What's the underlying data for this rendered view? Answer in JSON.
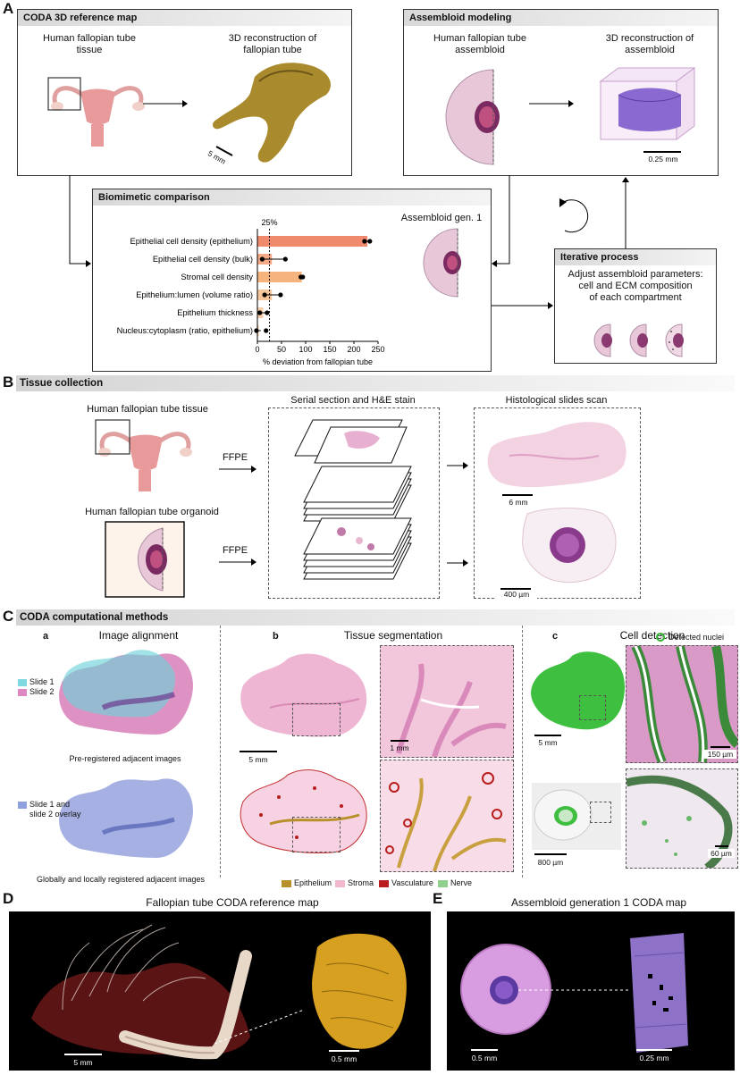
{
  "panelA": {
    "label": "A",
    "coda_box": {
      "title": "CODA 3D reference map",
      "tissue_label": "Human fallopian tube\ntissue",
      "recon_label": "3D reconstruction of\nfallopian tube",
      "scalebar": "5 mm"
    },
    "assembloid_box": {
      "title": "Assembloid modeling",
      "assembloid_label": "Human fallopian tube\nassembloid",
      "recon_label": "3D reconstruction of\nassembloid",
      "scalebar": "0.25 mm"
    },
    "biomimetic": {
      "title": "Biomimetic comparison",
      "gen_label": "Assembloid gen. 1",
      "ref_line_label": "25%"
    },
    "iterative": {
      "title": "Iterative process",
      "text": "Adjust assembloid parameters:\ncell and ECM composition\nof each compartment"
    }
  },
  "chart_data": {
    "type": "bar",
    "orientation": "horizontal",
    "categories": [
      "Epithelial cell density (epithelium)",
      "Epithelial cell density (bulk)",
      "Stromal cell density",
      "Epithelium:lumen (volume ratio)",
      "Epithelium thickness",
      "Nucleus:cytoplasm (ratio, epithelium)"
    ],
    "values": [
      228,
      30,
      92,
      30,
      12,
      3
    ],
    "errors": [
      6,
      25,
      3,
      16,
      8,
      4
    ],
    "points": [
      [
        222,
        233
      ],
      [
        10,
        58
      ],
      [
        90,
        94
      ],
      [
        15,
        48
      ],
      [
        5,
        20
      ],
      [
        -2,
        18
      ]
    ],
    "colors": [
      "#f08a6c",
      "#f5a987",
      "#f5b37d",
      "#f7c69a",
      "#f7cea8",
      "#f5d2b0"
    ],
    "xlabel": "% deviation from fallopian tube",
    "xticks": [
      0,
      50,
      100,
      150,
      200,
      250
    ],
    "xlim": [
      0,
      250
    ],
    "ref_line": 25
  },
  "panelB": {
    "label": "B",
    "title": "Tissue collection",
    "tissue_label": "Human fallopian tube tissue",
    "organoid_label": "Human fallopian tube organoid",
    "ffpe1": "FFPE",
    "ffpe2": "FFPE",
    "serial_title": "Serial section and H&E stain",
    "scan_title": "Histological slides scan",
    "scalebar1": "6 mm",
    "scalebar2": "400 µm"
  },
  "panelC": {
    "label": "C",
    "title": "CODA computational methods",
    "a": {
      "letter": "a",
      "title": "Image alignment",
      "legend1": "Slide 1",
      "legend2": "Slide 2",
      "cap1": "Pre-registered adjacent images",
      "legend3": "Slide 1 and\nslide 2 overlay",
      "cap2": "Globally and locally registered adjacent images"
    },
    "b": {
      "letter": "b",
      "title": "Tissue segmentation",
      "scalebar1": "5 mm",
      "scalebar2": "1 mm",
      "legend": [
        {
          "label": "Epithelium",
          "color": "#b8902a"
        },
        {
          "label": "Stroma",
          "color": "#f2b8cf"
        },
        {
          "label": "Vasculature",
          "color": "#b81c1c"
        },
        {
          "label": "Nerve",
          "color": "#8fd08f"
        }
      ]
    },
    "c": {
      "letter": "c",
      "title": "Cell detection",
      "legend": "Detected nuclei",
      "scalebar1": "5 mm",
      "scalebar2": "150 µm",
      "scalebar3": "800 µm",
      "scalebar4": "60 µm"
    }
  },
  "panelD": {
    "label": "D",
    "title": "Fallopian tube CODA reference map",
    "scalebar1": "5 mm",
    "scalebar2": "0.5 mm"
  },
  "panelE": {
    "label": "E",
    "title": "Assembloid generation 1 CODA map",
    "scalebar1": "0.5 mm",
    "scalebar2": "0.25 mm"
  }
}
